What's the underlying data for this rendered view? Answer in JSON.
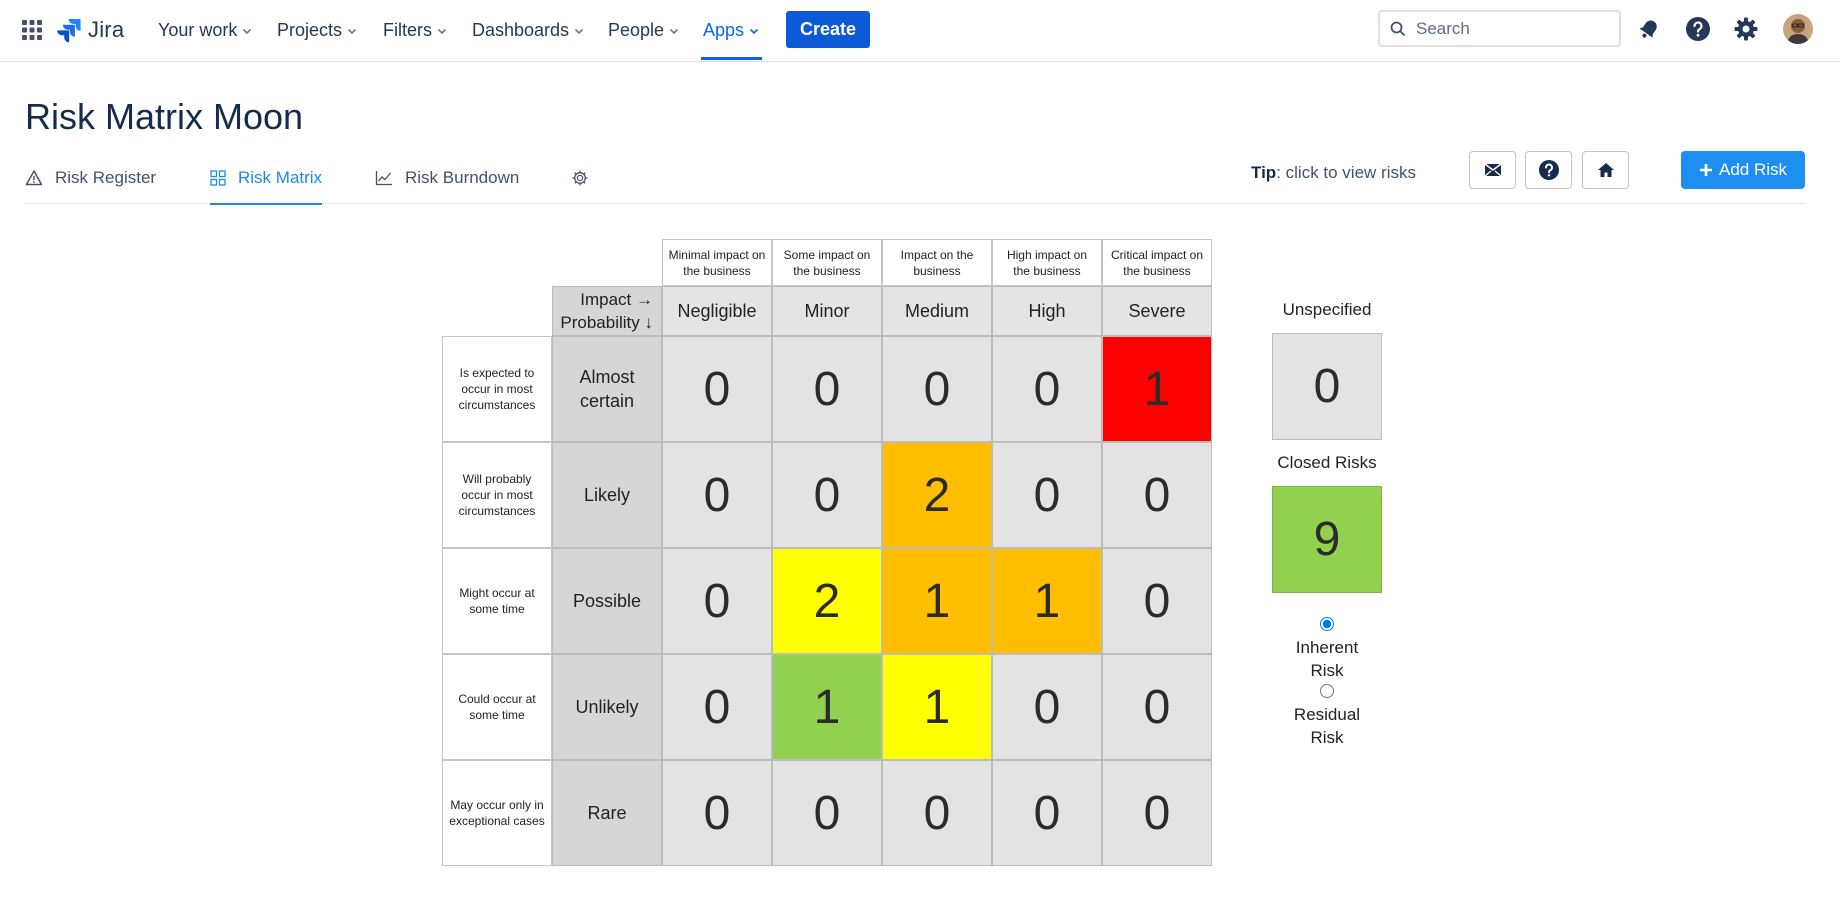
{
  "nav": {
    "app_name": "Jira",
    "items": [
      {
        "label": "Your work",
        "active": false
      },
      {
        "label": "Projects",
        "active": false
      },
      {
        "label": "Filters",
        "active": false
      },
      {
        "label": "Dashboards",
        "active": false
      },
      {
        "label": "People",
        "active": false
      },
      {
        "label": "Apps",
        "active": true
      }
    ],
    "create_label": "Create",
    "search_placeholder": "Search",
    "icons": [
      "app-switcher-icon",
      "notifications-icon",
      "help-icon",
      "settings-icon",
      "avatar"
    ]
  },
  "page": {
    "title": "Risk Matrix Moon",
    "tabs": [
      {
        "label": "Risk Register",
        "icon": "warning-icon",
        "active": false
      },
      {
        "label": "Risk Matrix",
        "icon": "matrix-icon",
        "active": true
      },
      {
        "label": "Risk Burndown",
        "icon": "chart-icon",
        "active": false
      }
    ],
    "tip_bold": "Tip",
    "tip_text": ": click to view risks",
    "add_risk_label": "Add Risk",
    "colors": {
      "accent": "#1e88e5",
      "primary_button": "#0c5ad8",
      "red": "#ff0000",
      "orange": "#ffbf00",
      "yellow": "#ffff00",
      "green": "#92d050",
      "gray": "#e3e3e3"
    }
  },
  "matrix": {
    "corner_line1": "Impact →",
    "corner_line2": "Probability ↓",
    "impact_levels": [
      {
        "label": "Negligible",
        "desc": "Minimal impact on the business"
      },
      {
        "label": "Minor",
        "desc": "Some impact on the business"
      },
      {
        "label": "Medium",
        "desc": "Impact on the business"
      },
      {
        "label": "High",
        "desc": "High impact on the business"
      },
      {
        "label": "Severe",
        "desc": "Critical impact on the business"
      }
    ],
    "probability_levels": [
      {
        "label": "Almost certain",
        "desc": "Is expected to occur in most circumstances"
      },
      {
        "label": "Likely",
        "desc": "Will probably occur in most circumstances"
      },
      {
        "label": "Possible",
        "desc": "Might occur at some time"
      },
      {
        "label": "Unlikely",
        "desc": "Could occur at some time"
      },
      {
        "label": "Rare",
        "desc": "May occur only in exceptional cases"
      }
    ],
    "counts": [
      [
        0,
        0,
        0,
        0,
        1
      ],
      [
        0,
        0,
        2,
        0,
        0
      ],
      [
        0,
        2,
        1,
        1,
        0
      ],
      [
        0,
        1,
        1,
        0,
        0
      ],
      [
        0,
        0,
        0,
        0,
        0
      ]
    ],
    "cell_colors": [
      [
        "gray",
        "gray",
        "gray",
        "gray",
        "red"
      ],
      [
        "gray",
        "gray",
        "orange",
        "gray",
        "gray"
      ],
      [
        "gray",
        "yellow",
        "orange",
        "orange",
        "gray"
      ],
      [
        "gray",
        "green",
        "yellow",
        "gray",
        "gray"
      ],
      [
        "gray",
        "gray",
        "gray",
        "gray",
        "gray"
      ]
    ]
  },
  "side": {
    "unspecified_label": "Unspecified",
    "unspecified_count": "0",
    "closed_label": "Closed Risks",
    "closed_count": "9",
    "radio_inherent_line1": "Inherent",
    "radio_inherent_line2": "Risk",
    "radio_residual_line1": "Residual",
    "radio_residual_line2": "Risk",
    "selected_mode": "inherent"
  }
}
